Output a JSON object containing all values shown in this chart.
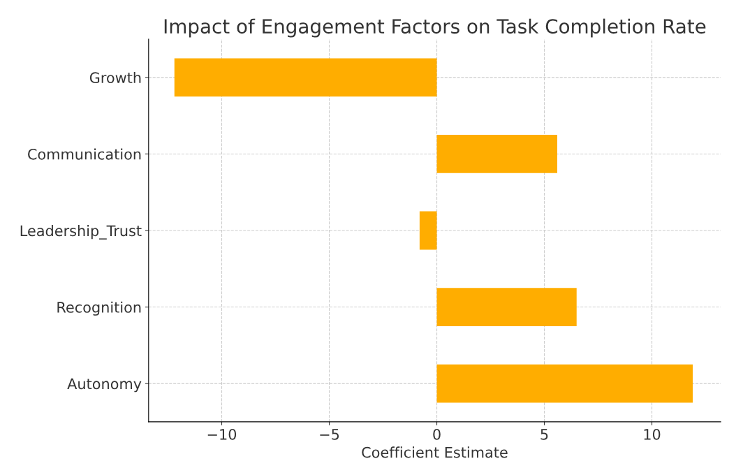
{
  "chart_data": {
    "type": "bar",
    "orientation": "horizontal",
    "title": "Impact of Engagement Factors on Task Completion Rate",
    "xlabel": "Coefficient Estimate",
    "categories": [
      "Growth",
      "Communication",
      "Leadership_Trust",
      "Recognition",
      "Autonomy"
    ],
    "values": [
      -12.2,
      5.6,
      -0.8,
      6.5,
      11.9
    ],
    "color": "#ffad00",
    "xlim": [
      -13.4,
      13.2
    ],
    "xticks": [
      {
        "value": -10,
        "label": "−10"
      },
      {
        "value": -5,
        "label": "−5"
      },
      0,
      5,
      10
    ],
    "grid": true
  }
}
